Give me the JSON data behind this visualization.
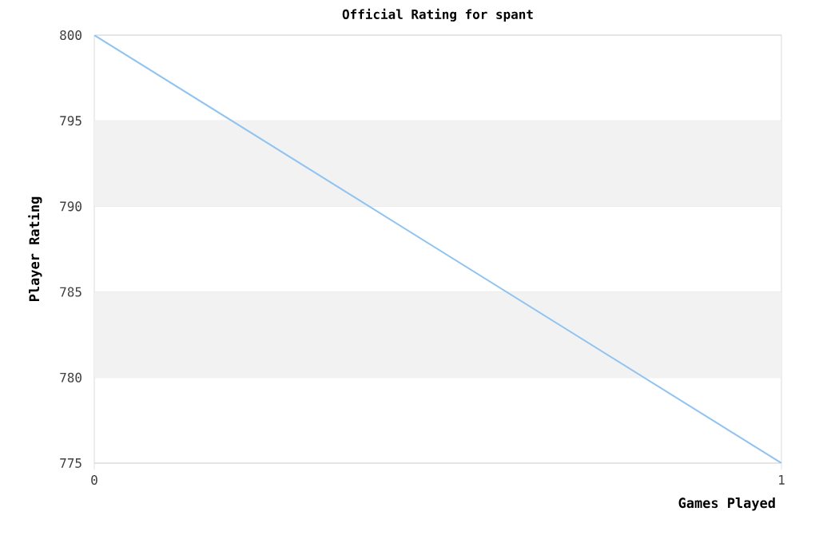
{
  "chart_data": {
    "type": "line",
    "title": "Official Rating for spant",
    "xlabel": "Games Played",
    "ylabel": "Player Rating",
    "x": [
      0,
      1
    ],
    "series": [
      {
        "color": "#8ec3f2",
        "values": [
          800,
          775
        ]
      }
    ],
    "xlim": [
      0,
      1
    ],
    "xticks": [
      0,
      1
    ],
    "ylim": [
      775,
      800
    ],
    "yticks": [
      775,
      780,
      785,
      790,
      795,
      800
    ],
    "grid": "y",
    "marker": "none",
    "line_style": "solid",
    "bands": [
      {
        "axis": "y",
        "from": 780,
        "to": 785,
        "color": "#f2f2f2"
      },
      {
        "axis": "y",
        "from": 790,
        "to": 795,
        "color": "#f2f2f2"
      }
    ]
  }
}
